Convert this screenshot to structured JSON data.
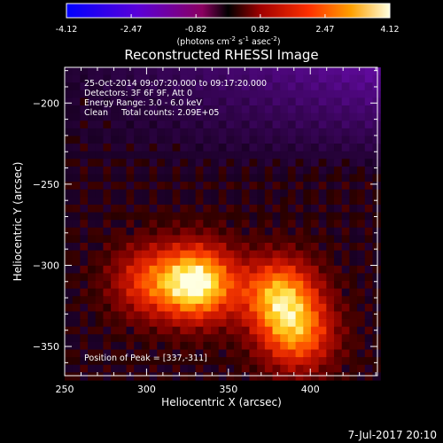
{
  "chart_data": {
    "type": "heatmap",
    "title": "Reconstructed RHESSI Image",
    "xlabel": "Heliocentric X (arcsec)",
    "ylabel": "Heliocentric Y (arcsec)",
    "xlim": [
      250,
      441
    ],
    "ylim": [
      -368,
      -178
    ],
    "xticks": [
      250,
      300,
      350,
      400
    ],
    "yticks": [
      -200,
      -250,
      -300,
      -350
    ],
    "colorbar": {
      "ticks": [
        "-4.12",
        "-2.47",
        "-0.82",
        "0.82",
        "2.47",
        "4.12"
      ],
      "range": [
        -4.12,
        4.12
      ],
      "units": "(photons cm",
      "units_exp1": "-2",
      "units_mid": " s",
      "units_exp2": "-1",
      "units_end": " asec",
      "units_exp3": "-2",
      "units_close": ")"
    },
    "info_lines": [
      "25-Oct-2014 09:07:20.000 to 09:17:20.000",
      "Detectors: 3F 6F 9F, Att 0",
      "Energy Range: 3.0 - 6.0 keV",
      "Clean     Total counts: 2.09E+05"
    ],
    "peak_label": "Position of Peak = [337,-311]",
    "sources": [
      {
        "x": 331,
        "y": -311,
        "peak": 4.12
      },
      {
        "x": 381,
        "y": -318,
        "peak": 3.1
      },
      {
        "x": 392,
        "y": -343,
        "peak": 2.6
      },
      {
        "x": 300,
        "y": -310,
        "peak": 1.9
      }
    ]
  },
  "footer_date": "7-Jul-2017 20:10"
}
